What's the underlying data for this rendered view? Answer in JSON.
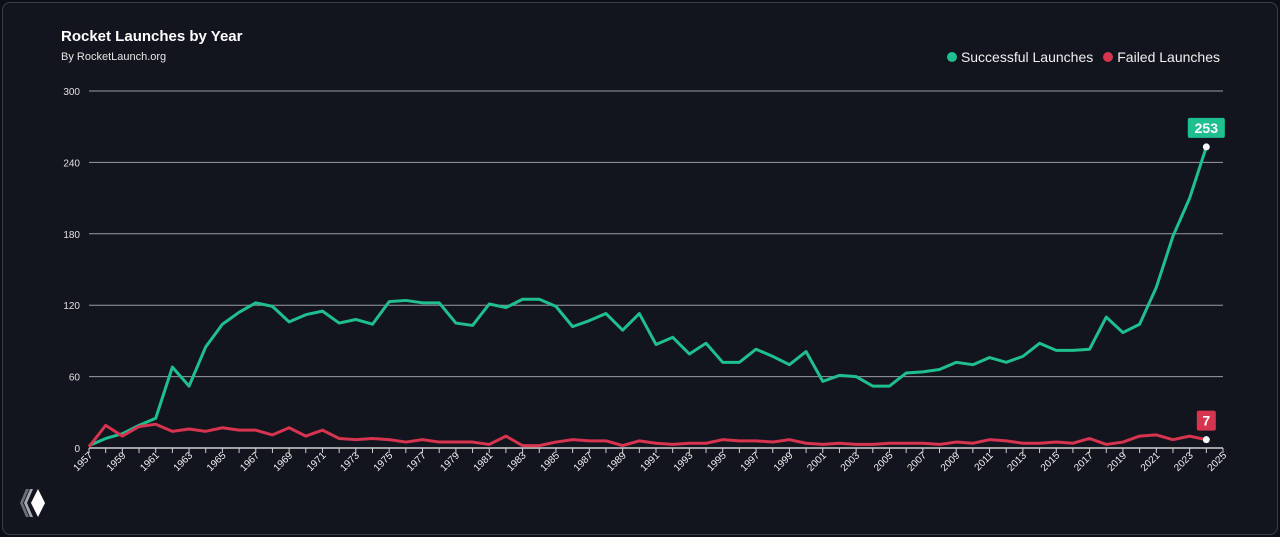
{
  "chart_data": {
    "type": "line",
    "title": "Rocket Launches by Year",
    "subtitle": "By RocketLaunch.org",
    "xlim": [
      1957,
      2025
    ],
    "ylim": [
      0,
      300
    ],
    "yticks": [
      0,
      60,
      120,
      180,
      240,
      300
    ],
    "xticks": [
      1957,
      1959,
      1961,
      1963,
      1965,
      1967,
      1969,
      1971,
      1973,
      1975,
      1977,
      1979,
      1981,
      1983,
      1985,
      1987,
      1989,
      1991,
      1993,
      1995,
      1997,
      1999,
      2001,
      2003,
      2005,
      2007,
      2009,
      2011,
      2013,
      2015,
      2017,
      2019,
      2021,
      2023,
      2025
    ],
    "grid": true,
    "legend_position": "top-right",
    "x": [
      1957,
      1958,
      1959,
      1960,
      1961,
      1962,
      1963,
      1964,
      1965,
      1966,
      1967,
      1968,
      1969,
      1970,
      1971,
      1972,
      1973,
      1974,
      1975,
      1976,
      1977,
      1978,
      1979,
      1980,
      1981,
      1982,
      1983,
      1984,
      1985,
      1986,
      1987,
      1988,
      1989,
      1990,
      1991,
      1992,
      1993,
      1994,
      1995,
      1996,
      1997,
      1998,
      1999,
      2000,
      2001,
      2002,
      2003,
      2004,
      2005,
      2006,
      2007,
      2008,
      2009,
      2010,
      2011,
      2012,
      2013,
      2014,
      2015,
      2016,
      2017,
      2018,
      2019,
      2020,
      2021,
      2022,
      2023,
      2024
    ],
    "series": [
      {
        "name": "Successful Launches",
        "color": "#1fbf8f",
        "end_label": "253",
        "values": [
          2,
          8,
          12,
          19,
          25,
          68,
          52,
          85,
          104,
          114,
          122,
          119,
          106,
          112,
          115,
          105,
          108,
          104,
          123,
          124,
          122,
          122,
          105,
          103,
          121,
          118,
          125,
          125,
          119,
          102,
          107,
          113,
          99,
          113,
          87,
          93,
          79,
          88,
          72,
          72,
          83,
          77,
          70,
          81,
          56,
          61,
          60,
          52,
          52,
          63,
          64,
          66,
          72,
          70,
          76,
          72,
          77,
          88,
          82,
          82,
          83,
          110,
          97,
          104,
          135,
          178,
          210,
          253
        ]
      },
      {
        "name": "Failed Launches",
        "color": "#d6344f",
        "end_label": "7",
        "values": [
          1,
          19,
          10,
          18,
          20,
          14,
          16,
          14,
          17,
          15,
          15,
          11,
          17,
          10,
          15,
          8,
          7,
          8,
          7,
          5,
          7,
          5,
          5,
          5,
          3,
          10,
          2,
          2,
          5,
          7,
          6,
          6,
          2,
          6,
          4,
          3,
          4,
          4,
          7,
          6,
          6,
          5,
          7,
          4,
          3,
          4,
          3,
          3,
          4,
          4,
          4,
          3,
          5,
          4,
          7,
          6,
          4,
          4,
          5,
          4,
          8,
          3,
          5,
          10,
          11,
          7,
          10,
          7
        ]
      }
    ]
  },
  "logo": "logo-icon"
}
